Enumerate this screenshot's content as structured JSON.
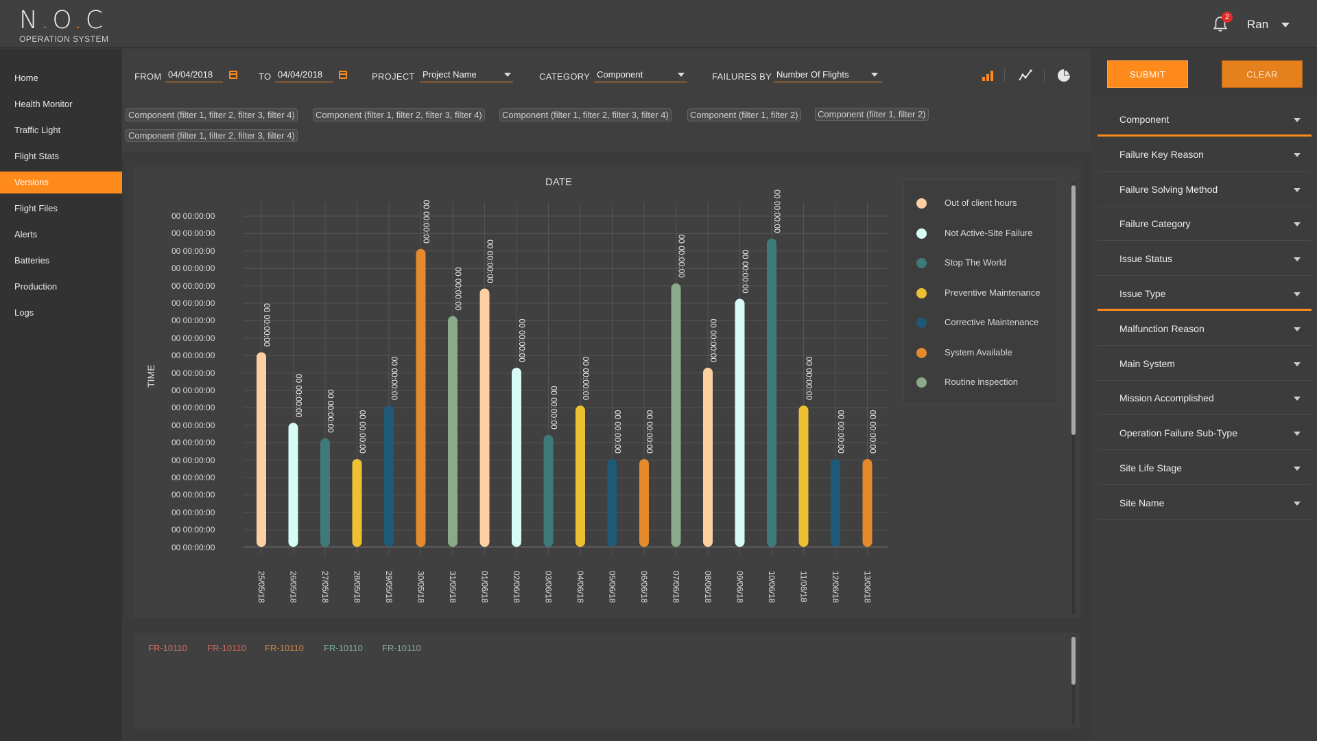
{
  "header": {
    "logo_title_pre": "N",
    "logo_title_mid": "O",
    "logo_title_post": "C",
    "logo_subtitle": "OPERATION SYSTEM",
    "notification_count": "2",
    "user_name": "Ran"
  },
  "sidebar": {
    "items": [
      {
        "label": "Home",
        "active": false
      },
      {
        "label": "Health Monitor",
        "active": false
      },
      {
        "label": "Traffic Light",
        "active": false
      },
      {
        "label": "Flight Stats",
        "active": false
      },
      {
        "label": "Versions",
        "active": true
      },
      {
        "label": "Flight Files",
        "active": false
      },
      {
        "label": "Alerts",
        "active": false
      },
      {
        "label": "Batteries",
        "active": false
      },
      {
        "label": "Production",
        "active": false
      },
      {
        "label": "Logs",
        "active": false
      }
    ]
  },
  "filters": {
    "from_label": "FROM",
    "from_value": "04/04/2018",
    "to_label": "TO",
    "to_value": "04/04/2018",
    "project_label": "PROJECT",
    "project_value": "Project Name",
    "category_label": "CATEGORY",
    "category_value": "Component",
    "failures_by_label": "FAILURES BY",
    "failures_by_value": "Number Of Flights",
    "submit_label": "SUBMIT",
    "clear_label": "CLEAR"
  },
  "chips": [
    "Component (filter 1, filter 2, filter 3, filter 4)",
    "Component (filter 1, filter 2, filter 3, filter 4)",
    "Component (filter 1, filter 2, filter 3, filter 4)",
    "Component (filter 1, filter 2)",
    "Component (filter 1, filter 2)",
    "Component (filter 1, filter 2, filter 3, filter 4)"
  ],
  "chart_data": {
    "type": "bar",
    "title": "DATE",
    "ylabel": "TIME",
    "ytick_labels": [
      "00 00:00:00",
      "00 00:00:00",
      "00 00:00:00",
      "00 00:00:00",
      "00 00:00:00",
      "00 00:00:00",
      "00 00:00:00",
      "00 00:00:00",
      "00 00:00:00",
      "00 00:00:00",
      "00 00:00:00",
      "00 00:00:00",
      "00 00:00:00",
      "00 00:00:00",
      "00 00:00:00",
      "00 00:00:00",
      "00 00:00:00",
      "00 00:00:00",
      "00 00:00:00",
      "00 00:00:00"
    ],
    "ylim": [
      0,
      20
    ],
    "categories": [
      "25/05/18",
      "26/05/18",
      "27/05/18",
      "28/05/18",
      "29/05/18",
      "30/05/18",
      "31/05/18",
      "01/06/18",
      "02/06/18",
      "03/06/18",
      "04/06/18",
      "05/06/18",
      "06/06/18",
      "07/06/18",
      "08/06/18",
      "09/06/18",
      "10/06/18",
      "11/06/18",
      "12/06/18",
      "13/06/18"
    ],
    "values": [
      11.3,
      7.2,
      6.3,
      5.1,
      8.2,
      17.3,
      13.4,
      15.0,
      10.4,
      6.5,
      8.2,
      5.1,
      5.1,
      15.3,
      10.4,
      14.4,
      17.9,
      8.2,
      5.1,
      5.1
    ],
    "bar_series": [
      0,
      1,
      2,
      3,
      4,
      5,
      6,
      0,
      1,
      2,
      3,
      4,
      5,
      6,
      0,
      1,
      2,
      3,
      4,
      5
    ],
    "data_label": "00 00:00:00",
    "series": [
      {
        "name": "Out of client hours",
        "color": "#fdd0a2"
      },
      {
        "name": "Not Active-Site Failure",
        "color": "#d7fbf6"
      },
      {
        "name": "Stop The World",
        "color": "#3e7a7a"
      },
      {
        "name": "Preventive Maintenance",
        "color": "#eec133"
      },
      {
        "name": "Corrective Maintenance",
        "color": "#1f5978"
      },
      {
        "name": "System Available",
        "color": "#e48a2c"
      },
      {
        "name": "Routine inspection",
        "color": "#8aaa8a"
      }
    ],
    "legend": "right",
    "grid": true
  },
  "failure_ids": [
    {
      "label": "FR-10110",
      "color": "#d4735e"
    },
    {
      "label": "FR-10110",
      "color": "#d06a5f"
    },
    {
      "label": "FR-10110",
      "color": "#c98a4a"
    },
    {
      "label": "FR-10110",
      "color": "#7fb0a8"
    },
    {
      "label": "FR-10110",
      "color": "#88aaa0"
    }
  ],
  "right_panel": {
    "items": [
      {
        "label": "Component",
        "active": true
      },
      {
        "label": "Failure Key Reason",
        "active": false
      },
      {
        "label": "Failure Solving Method",
        "active": false
      },
      {
        "label": "Failure Category",
        "active": false
      },
      {
        "label": "Issue Status",
        "active": false
      },
      {
        "label": "Issue Type",
        "active": true
      },
      {
        "label": "Malfunction Reason",
        "active": false
      },
      {
        "label": "Main System",
        "active": false
      },
      {
        "label": "Mission Accomplished",
        "active": false
      },
      {
        "label": "Operation Failure Sub-Type",
        "active": false
      },
      {
        "label": "Site Life Stage",
        "active": false
      },
      {
        "label": "Site Name",
        "active": false
      }
    ]
  },
  "colors": {
    "accent": "#ff8a1c",
    "background": "#3a3a3a",
    "sidebar": "#323232"
  }
}
